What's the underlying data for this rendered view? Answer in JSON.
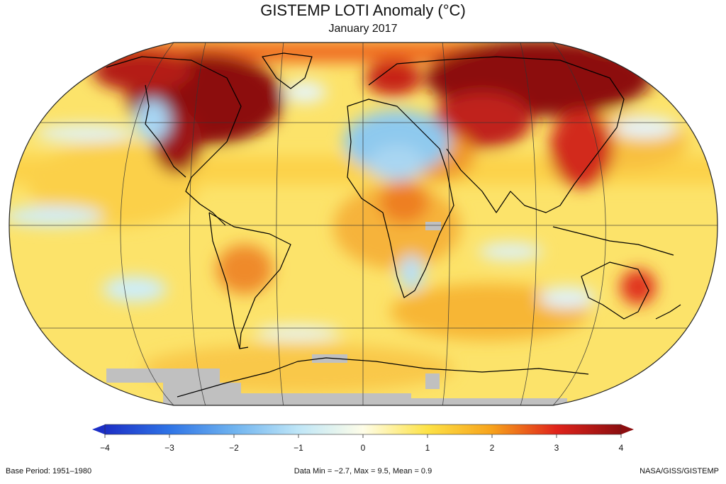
{
  "header": {
    "title": "GISTEMP LOTI Anomaly (°C)",
    "subtitle": "January 2017"
  },
  "colorbar": {
    "ticks": [
      "−4",
      "−3",
      "−2",
      "−1",
      "0",
      "1",
      "2",
      "3",
      "4"
    ],
    "values": [
      -4,
      -3,
      -2,
      -1,
      0,
      1,
      2,
      3,
      4
    ],
    "colors": {
      "neg4": "#1c2fc6",
      "neg3": "#2f74e6",
      "neg2": "#6fb3ef",
      "neg1": "#bfe6f7",
      "zero": "#fefde8",
      "pos1": "#fde246",
      "pos2": "#f7a21b",
      "pos3": "#e0231b",
      "pos4": "#8c0e10"
    }
  },
  "map": {
    "projection": "robinson-like",
    "missing_color": "#c0c0c0",
    "coastline_color": "#000000"
  },
  "footer": {
    "base_period": "Base Period: 1951–1980",
    "stats": "Data Min = −2.7, Max = 9.5, Mean = 0.9",
    "source": "NASA/GISS/GISTEMP"
  }
}
